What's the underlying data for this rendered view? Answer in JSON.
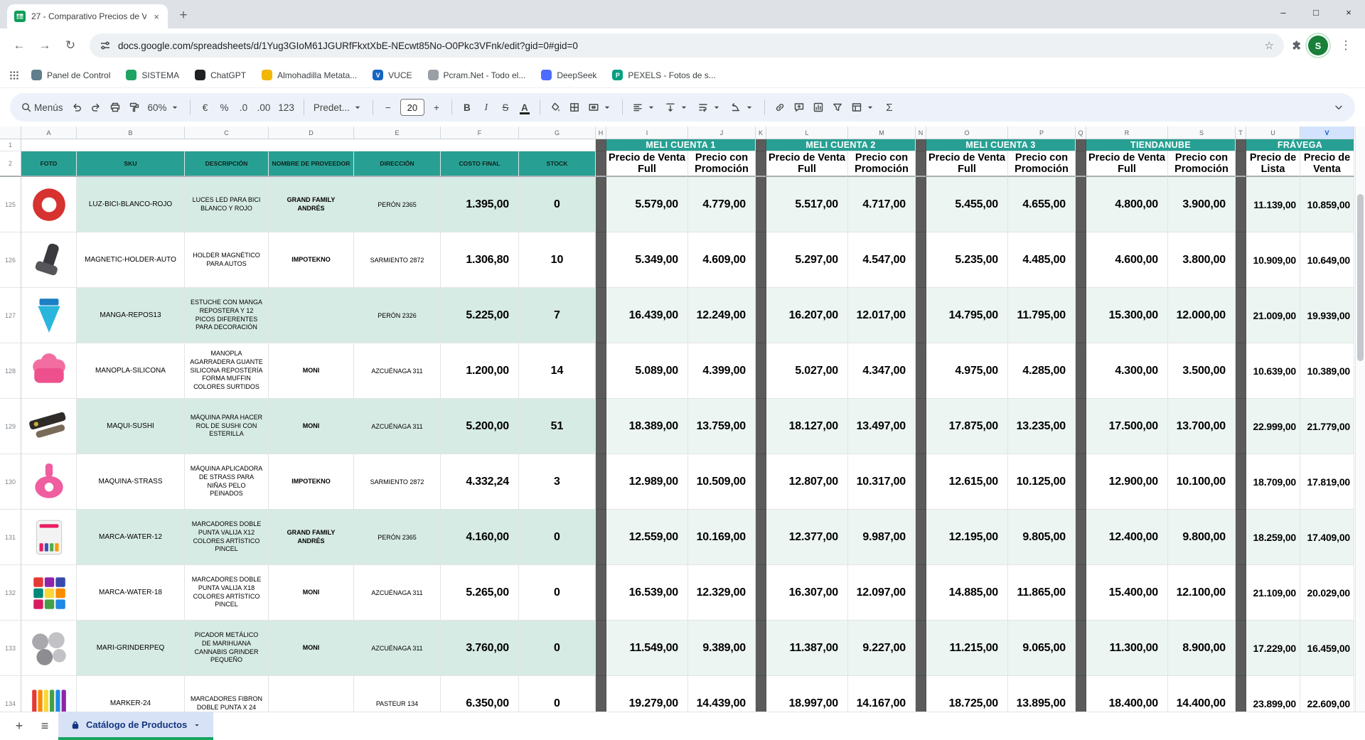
{
  "browser": {
    "tab_title": "27 - Comparativo Precios de Ve...",
    "tab_close": "×",
    "new_tab": "+",
    "back": "←",
    "forward": "→",
    "reload": "↻",
    "url": "docs.google.com/spreadsheets/d/1Yug3GIoM61JGURfFkxtXbE-NEcwt85No-O0Pkc3VFnk/edit?gid=0#gid=0",
    "star": "☆",
    "menu_dots": "⋮",
    "profile_initial": "S",
    "window_controls": {
      "minimize": "–",
      "maximize": "□",
      "close": "×"
    },
    "bookmarks": [
      {
        "label": "Panel de Control",
        "color": "#607d8b",
        "letter": ""
      },
      {
        "label": "SISTEMA",
        "color": "#1da462",
        "letter": ""
      },
      {
        "label": "ChatGPT",
        "color": "#202123",
        "letter": ""
      },
      {
        "label": "Almohadilla Metata...",
        "color": "#f2b705",
        "letter": ""
      },
      {
        "label": "VUCE",
        "color": "#1565c0",
        "letter": "V"
      },
      {
        "label": "Pcram.Net - Todo el...",
        "color": "#9aa0a6",
        "letter": ""
      },
      {
        "label": "DeepSeek",
        "color": "#4d6bfe",
        "letter": ""
      },
      {
        "label": "PEXELS - Fotos de s...",
        "color": "#05a081",
        "letter": "P"
      }
    ]
  },
  "toolbar": {
    "menus": "Menús",
    "zoom": "60%",
    "currency": "€",
    "percent": "%",
    "decrease_decimals": ".0",
    "increase_decimals": ".00",
    "more_formats": "123",
    "font": "Predet...",
    "decrease_font": "−",
    "font_size": "20",
    "increase_font": "+",
    "bold": "B",
    "italic": "I",
    "strikethrough": "S",
    "text_color": "A",
    "functions": "Σ",
    "collapse": "⌄"
  },
  "sheet": {
    "column_letters": [
      "A",
      "B",
      "C",
      "D",
      "E",
      "F",
      "G",
      "H",
      "I",
      "J",
      "K",
      "L",
      "M",
      "N",
      "O",
      "P",
      "Q",
      "R",
      "S",
      "T",
      "U",
      "V"
    ],
    "selected_column": "V",
    "header_row_numbers": [
      "1",
      "2"
    ],
    "base_headers": [
      "FOTO",
      "SKU",
      "DESCRIPCIÓN",
      "NOMBRE DE PROVEEDOR",
      "DIRECCIÓN",
      "COSTO FINAL",
      "STOCK"
    ],
    "groups": [
      {
        "title": "MELI CUENTA 1",
        "cols": [
          "Precio de Venta Full",
          "Precio con Promoción"
        ]
      },
      {
        "title": "MELI CUENTA 2",
        "cols": [
          "Precio de Venta Full",
          "Precio con Promoción"
        ]
      },
      {
        "title": "MELI CUENTA 3",
        "cols": [
          "Precio de Venta Full",
          "Precio con Promoción"
        ]
      },
      {
        "title": "TIENDANUBE",
        "cols": [
          "Precio de Venta Full",
          "Precio con Promoción"
        ]
      },
      {
        "title": "FRÁVEGA",
        "cols": [
          "Precio de Lista",
          "Precio de Venta"
        ]
      }
    ],
    "products": [
      {
        "row": "125",
        "sku": "LUZ-BICI-BLANCO-ROJO",
        "descripcion": "LUCES LED PARA BICI BLANCO Y ROJO",
        "proveedor": "GRAND FAMILY ANDRÉS",
        "direccion": "PERÓN 2365",
        "costo_final": "1.395,00",
        "stock": "0",
        "prices": [
          [
            "5.579,00",
            "4.779,00"
          ],
          [
            "5.517,00",
            "4.717,00"
          ],
          [
            "5.455,00",
            "4.655,00"
          ],
          [
            "4.800,00",
            "3.900,00"
          ],
          [
            "11.139,00",
            "10.859,00"
          ]
        ],
        "photo": {
          "shape": "ring",
          "colors": [
            "#d63230",
            "#ffffff"
          ]
        }
      },
      {
        "row": "126",
        "sku": "MAGNETIC-HOLDER-AUTO",
        "descripcion": "HOLDER MAGNÉTICO PARA AUTOS",
        "proveedor": "IMPOTEKNO",
        "direccion": "SARMIENTO 2872",
        "costo_final": "1.306,80",
        "stock": "10",
        "prices": [
          [
            "5.349,00",
            "4.609,00"
          ],
          [
            "5.297,00",
            "4.547,00"
          ],
          [
            "5.235,00",
            "4.485,00"
          ],
          [
            "4.600,00",
            "3.800,00"
          ],
          [
            "10.909,00",
            "10.649,00"
          ]
        ],
        "photo": {
          "shape": "clip",
          "colors": [
            "#3a3a3e",
            "#55555a"
          ]
        }
      },
      {
        "row": "127",
        "sku": "MANGA-REPOS13",
        "descripcion": "ESTUCHE CON MANGA REPOSTERA Y 12 PICOS DIFERENTES PARA DECORACIÓN",
        "proveedor": "",
        "direccion": "PERÓN 2326",
        "costo_final": "5.225,00",
        "stock": "7",
        "prices": [
          [
            "16.439,00",
            "12.249,00"
          ],
          [
            "16.207,00",
            "12.017,00"
          ],
          [
            "14.795,00",
            "11.795,00"
          ],
          [
            "15.300,00",
            "12.000,00"
          ],
          [
            "21.009,00",
            "19.939,00"
          ]
        ],
        "photo": {
          "shape": "cone",
          "colors": [
            "#2ab5dc",
            "#1d7fc4"
          ]
        }
      },
      {
        "row": "128",
        "sku": "MANOPLA-SILICONA",
        "descripcion": "MANOPLA AGARRADERA GUANTE SILICONA REPOSTERÍA FORMA MUFFIN COLORES SURTIDOS",
        "proveedor": "MONI",
        "direccion": "AZCUÉNAGA 311",
        "costo_final": "1.200,00",
        "stock": "14",
        "prices": [
          [
            "5.089,00",
            "4.399,00"
          ],
          [
            "5.027,00",
            "4.347,00"
          ],
          [
            "4.975,00",
            "4.285,00"
          ],
          [
            "4.300,00",
            "3.500,00"
          ],
          [
            "10.639,00",
            "10.389,00"
          ]
        ],
        "photo": {
          "shape": "muffin",
          "colors": [
            "#f26ea0",
            "#ee4f8d"
          ]
        }
      },
      {
        "row": "129",
        "sku": "MAQUI-SUSHI",
        "descripcion": "MÁQUINA PARA HACER ROL DE SUSHI CON ESTERILLA",
        "proveedor": "MONI",
        "direccion": "AZCUÉNAGA 311",
        "costo_final": "5.200,00",
        "stock": "51",
        "prices": [
          [
            "18.389,00",
            "13.759,00"
          ],
          [
            "18.127,00",
            "13.497,00"
          ],
          [
            "17.875,00",
            "13.235,00"
          ],
          [
            "17.500,00",
            "13.700,00"
          ],
          [
            "22.999,00",
            "21.779,00"
          ]
        ],
        "photo": {
          "shape": "kit",
          "colors": [
            "#2e2b28",
            "#7a6a58"
          ]
        }
      },
      {
        "row": "130",
        "sku": "MAQUINA-STRASS",
        "descripcion": "MÁQUINA APLICADORA DE STRASS PARA NIÑAS PELO PEINADOS",
        "proveedor": "IMPOTEKNO",
        "direccion": "SARMIENTO 2872",
        "costo_final": "4.332,24",
        "stock": "3",
        "prices": [
          [
            "12.989,00",
            "10.509,00"
          ],
          [
            "12.807,00",
            "10.317,00"
          ],
          [
            "12.615,00",
            "10.125,00"
          ],
          [
            "12.900,00",
            "10.100,00"
          ],
          [
            "18.709,00",
            "17.819,00"
          ]
        ],
        "photo": {
          "shape": "device",
          "colors": [
            "#ef5e9e",
            "#ffffff"
          ]
        }
      },
      {
        "row": "131",
        "sku": "MARCA-WATER-12",
        "descripcion": "MARCADORES DOBLE PUNTA VALIJA X12 COLORES ARTÍSTICO PINCEL",
        "proveedor": "GRAND FAMILY ANDRÉS",
        "direccion": "PERÓN 2365",
        "costo_final": "4.160,00",
        "stock": "0",
        "prices": [
          [
            "12.559,00",
            "10.169,00"
          ],
          [
            "12.377,00",
            "9.987,00"
          ],
          [
            "12.195,00",
            "9.805,00"
          ],
          [
            "12.400,00",
            "9.800,00"
          ],
          [
            "18.259,00",
            "17.409,00"
          ]
        ],
        "photo": {
          "shape": "case",
          "colors": [
            "#f3f3f3",
            "#e91e63",
            "#3f51b5",
            "#4caf50",
            "#ff9800"
          ]
        }
      },
      {
        "row": "132",
        "sku": "MARCA-WATER-18",
        "descripcion": "MARCADORES DOBLE PUNTA VALIJA X18 COLORES ARTÍSTICO PINCEL",
        "proveedor": "MONI",
        "direccion": "AZCUÉNAGA 311",
        "costo_final": "5.265,00",
        "stock": "0",
        "prices": [
          [
            "16.539,00",
            "12.329,00"
          ],
          [
            "16.307,00",
            "12.097,00"
          ],
          [
            "14.885,00",
            "11.865,00"
          ],
          [
            "15.400,00",
            "12.100,00"
          ],
          [
            "21.109,00",
            "20.029,00"
          ]
        ],
        "photo": {
          "shape": "grid",
          "colors": [
            "#e53935",
            "#8e24aa",
            "#3949ab",
            "#00897b",
            "#fdd835",
            "#fb8c00",
            "#d81b60",
            "#43a047",
            "#1e88e5"
          ]
        }
      },
      {
        "row": "133",
        "sku": "MARI-GRINDERPEQ",
        "descripcion": "PICADOR METÁLICO DE MARIHUANA CANNABIS GRINDER PEQUEÑO",
        "proveedor": "MONI",
        "direccion": "AZCUÉNAGA 311",
        "costo_final": "3.760,00",
        "stock": "0",
        "prices": [
          [
            "11.549,00",
            "9.389,00"
          ],
          [
            "11.387,00",
            "9.227,00"
          ],
          [
            "11.215,00",
            "9.065,00"
          ],
          [
            "11.300,00",
            "8.900,00"
          ],
          [
            "17.229,00",
            "16.459,00"
          ]
        ],
        "photo": {
          "shape": "circles",
          "colors": [
            "#a8a8ad",
            "#c2c2c6",
            "#8c8c91"
          ]
        }
      },
      {
        "row": "134",
        "sku": "MARKER-24",
        "descripcion": "MARCADORES FIBRON DOBLE PUNTA X 24",
        "proveedor": "",
        "direccion": "PASTEUR 134",
        "costo_final": "6.350,00",
        "stock": "0",
        "prices": [
          [
            "19.279,00",
            "14.439,00"
          ],
          [
            "18.997,00",
            "14.167,00"
          ],
          [
            "18.725,00",
            "13.895,00"
          ],
          [
            "18.400,00",
            "14.400,00"
          ],
          [
            "23.899,00",
            "22.609,00"
          ]
        ],
        "photo": {
          "shape": "bars",
          "colors": [
            "#e53935",
            "#fb8c00",
            "#fdd835",
            "#43a047",
            "#1e88e5",
            "#8e24aa"
          ]
        }
      }
    ]
  },
  "sheet_tabs": {
    "add": "+",
    "all_sheets": "≡",
    "active_tab": "Catálogo de Productos"
  },
  "colors": {
    "header_teal": "#27a093",
    "row_stripe": "#d7ebe5",
    "row_stripe_price": "#ecf5f1",
    "separator_column": "#5b5b5b",
    "active_sheet_tab_bg": "#d7e2f7",
    "active_sheet_tab_underline": "#16a65c",
    "selected_column_bg": "#d3e3fd",
    "sheets_logo_green": "#0f9d58",
    "avatar_green": "#188038"
  }
}
